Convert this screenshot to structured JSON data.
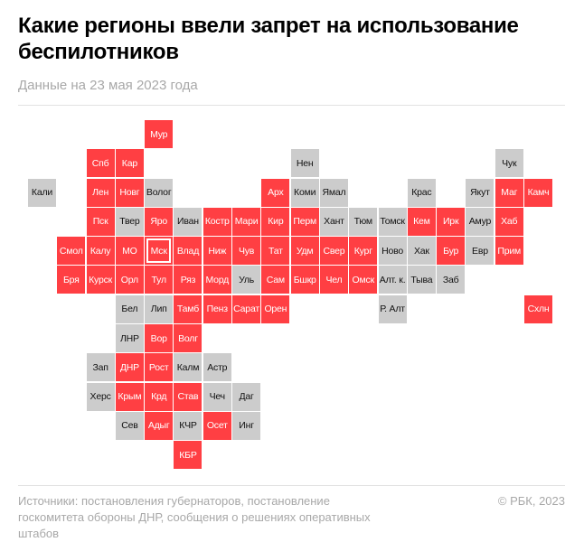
{
  "header": {
    "title": "Какие регионы ввели запрет на использование беспилотников",
    "subtitle": "Данные на 23 мая 2023 года"
  },
  "colors": {
    "banned": "#ff3f43",
    "not_banned": "#cccccc"
  },
  "map": {
    "highlighted": "Мск",
    "rows": [
      [
        null,
        null,
        null,
        null,
        {
          "label": "Мур",
          "banned": true
        }
      ],
      [
        null,
        null,
        {
          "label": "Спб",
          "banned": true
        },
        {
          "label": "Кар",
          "banned": true
        },
        null,
        null,
        null,
        null,
        null,
        {
          "label": "Нен",
          "banned": false
        },
        null,
        null,
        null,
        null,
        null,
        null,
        {
          "label": "Чук",
          "banned": false
        }
      ],
      [
        {
          "label": "Кали",
          "banned": false
        },
        null,
        {
          "label": "Лен",
          "banned": true
        },
        {
          "label": "Новг",
          "banned": true
        },
        {
          "label": "Волог",
          "banned": false
        },
        null,
        null,
        null,
        {
          "label": "Арх",
          "banned": true
        },
        {
          "label": "Коми",
          "banned": false
        },
        {
          "label": "Ямал",
          "banned": false
        },
        null,
        null,
        {
          "label": "Крас",
          "banned": false
        },
        null,
        {
          "label": "Якут",
          "banned": false
        },
        {
          "label": "Маг",
          "banned": true
        },
        {
          "label": "Камч",
          "banned": true
        }
      ],
      [
        null,
        null,
        {
          "label": "Пск",
          "banned": true
        },
        {
          "label": "Твер",
          "banned": false
        },
        {
          "label": "Яро",
          "banned": true
        },
        {
          "label": "Иван",
          "banned": false
        },
        {
          "label": "Костр",
          "banned": true
        },
        {
          "label": "Мари",
          "banned": true
        },
        {
          "label": "Кир",
          "banned": true
        },
        {
          "label": "Перм",
          "banned": true
        },
        {
          "label": "Хант",
          "banned": false
        },
        {
          "label": "Тюм",
          "banned": false
        },
        {
          "label": "Томск",
          "banned": false
        },
        {
          "label": "Кем",
          "banned": true
        },
        {
          "label": "Ирк",
          "banned": true
        },
        {
          "label": "Амур",
          "banned": false
        },
        {
          "label": "Хаб",
          "banned": true
        }
      ],
      [
        null,
        {
          "label": "Смол",
          "banned": true
        },
        {
          "label": "Калу",
          "banned": true
        },
        {
          "label": "МО",
          "banned": true
        },
        {
          "label": "Мск",
          "banned": true
        },
        {
          "label": "Влад",
          "banned": true
        },
        {
          "label": "Ниж",
          "banned": true
        },
        {
          "label": "Чув",
          "banned": true
        },
        {
          "label": "Тат",
          "banned": true
        },
        {
          "label": "Удм",
          "banned": true
        },
        {
          "label": "Свер",
          "banned": true
        },
        {
          "label": "Кург",
          "banned": true
        },
        {
          "label": "Ново",
          "banned": false
        },
        {
          "label": "Хак",
          "banned": false
        },
        {
          "label": "Бур",
          "banned": true
        },
        {
          "label": "Евр",
          "banned": false
        },
        {
          "label": "Прим",
          "banned": true
        }
      ],
      [
        null,
        {
          "label": "Бря",
          "banned": true
        },
        {
          "label": "Курск",
          "banned": true
        },
        {
          "label": "Орл",
          "banned": true
        },
        {
          "label": "Тул",
          "banned": true
        },
        {
          "label": "Ряз",
          "banned": true
        },
        {
          "label": "Морд",
          "banned": true
        },
        {
          "label": "Уль",
          "banned": false
        },
        {
          "label": "Сам",
          "banned": true
        },
        {
          "label": "Бшкр",
          "banned": true
        },
        {
          "label": "Чел",
          "banned": true
        },
        {
          "label": "Омск",
          "banned": true
        },
        {
          "label": "Алт. к.",
          "banned": false
        },
        {
          "label": "Тыва",
          "banned": false
        },
        {
          "label": "Заб",
          "banned": false
        }
      ],
      [
        null,
        null,
        null,
        {
          "label": "Бел",
          "banned": false
        },
        {
          "label": "Лип",
          "banned": false
        },
        {
          "label": "Тамб",
          "banned": true
        },
        {
          "label": "Пенз",
          "banned": true
        },
        {
          "label": "Сарат",
          "banned": true
        },
        {
          "label": "Орен",
          "banned": true
        },
        null,
        null,
        null,
        {
          "label": "Р. Алт",
          "banned": false
        },
        null,
        null,
        null,
        null,
        {
          "label": "Схлн",
          "banned": true
        }
      ],
      [
        null,
        null,
        null,
        {
          "label": "ЛНР",
          "banned": false
        },
        {
          "label": "Вор",
          "banned": true
        },
        {
          "label": "Волг",
          "banned": true
        }
      ],
      [
        null,
        null,
        {
          "label": "Зап",
          "banned": false
        },
        {
          "label": "ДНР",
          "banned": true
        },
        {
          "label": "Рост",
          "banned": true
        },
        {
          "label": "Калм",
          "banned": false
        },
        {
          "label": "Астр",
          "banned": false
        }
      ],
      [
        null,
        null,
        {
          "label": "Херс",
          "banned": false
        },
        {
          "label": "Крым",
          "banned": true
        },
        {
          "label": "Крд",
          "banned": true
        },
        {
          "label": "Став",
          "banned": true
        },
        {
          "label": "Чеч",
          "banned": false
        },
        {
          "label": "Даг",
          "banned": false
        }
      ],
      [
        null,
        null,
        null,
        {
          "label": "Сев",
          "banned": false
        },
        {
          "label": "Адыг",
          "banned": true
        },
        {
          "label": "КЧР",
          "banned": false
        },
        {
          "label": "Осет",
          "banned": true
        },
        {
          "label": "Инг",
          "banned": false
        }
      ],
      [
        null,
        null,
        null,
        null,
        null,
        {
          "label": "КБР",
          "banned": true
        }
      ]
    ]
  },
  "footer": {
    "sources": "Источники: постановления губернаторов, постановление госкомитета обороны ДНР, сообщения о решениях оперативных штабов",
    "copyright": "© РБК, 2023"
  }
}
